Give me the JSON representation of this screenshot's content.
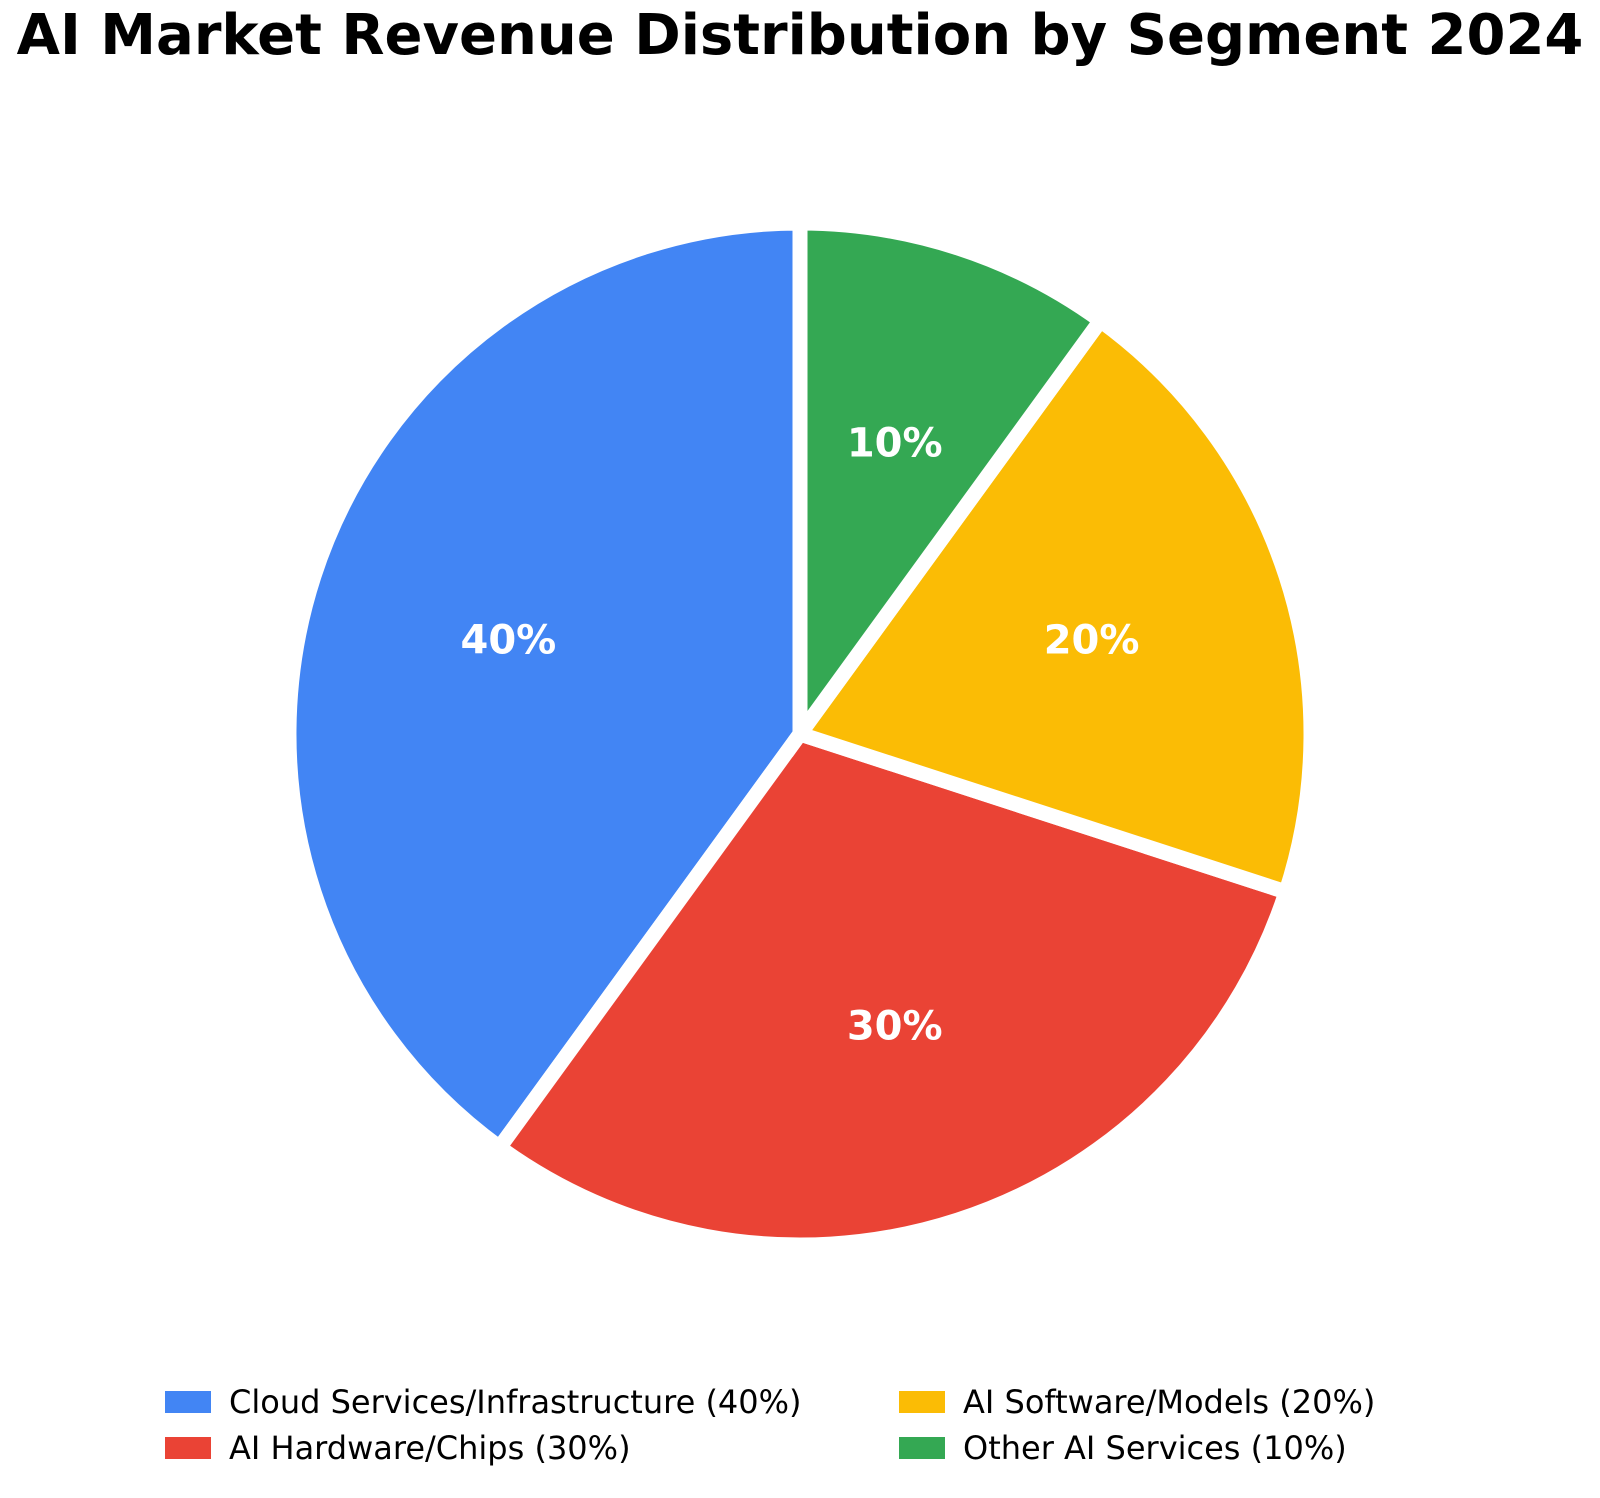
{
  "title": "AI Market Revenue Distribution by Segment 2024",
  "chart_data": {
    "type": "pie",
    "title": "AI Market Revenue Distribution by Segment 2024",
    "start_angle": 90,
    "counterclockwise": true,
    "label_distance": 0.6,
    "background_color": "#ffffff",
    "wedge_edge_color": "#ffffff",
    "slice_label_color": "#ffffff",
    "segments": [
      {
        "label": "Cloud Services/Infrastructure",
        "value": 40,
        "pct_label": "40%",
        "color": "#4285F4"
      },
      {
        "label": "AI Hardware/Chips",
        "value": 30,
        "pct_label": "30%",
        "color": "#EA4335"
      },
      {
        "label": "AI Software/Models",
        "value": 20,
        "pct_label": "20%",
        "color": "#FBBC05"
      },
      {
        "label": "Other AI Services",
        "value": 10,
        "pct_label": "10%",
        "color": "#34A853"
      }
    ],
    "legend_position": "bottom",
    "legend_columns": 2
  },
  "legend": {
    "items": [
      {
        "label": "Cloud Services/Infrastructure (40%)",
        "color": "#4285F4"
      },
      {
        "label": "AI Software/Models (20%)",
        "color": "#FBBC05"
      },
      {
        "label": "AI Hardware/Chips (30%)",
        "color": "#EA4335"
      },
      {
        "label": "Other AI Services (10%)",
        "color": "#34A853"
      }
    ]
  }
}
